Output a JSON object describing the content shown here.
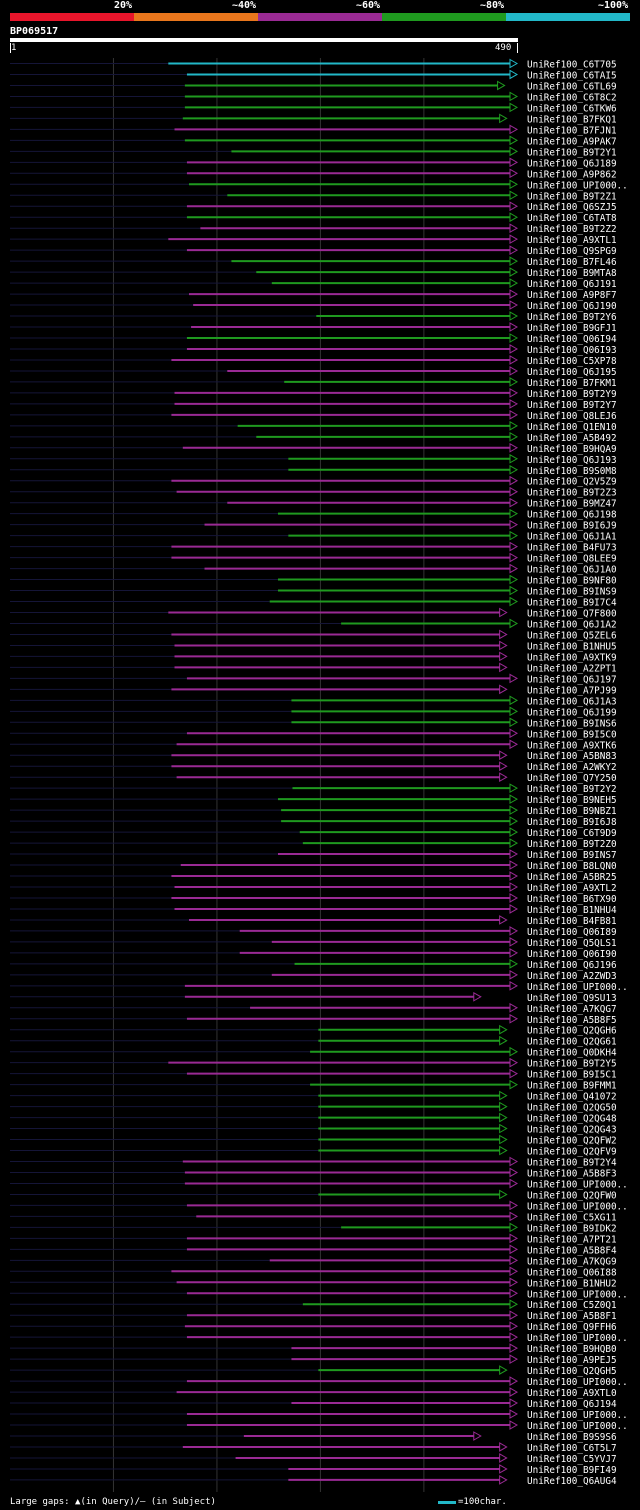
{
  "legend": {
    "segments": [
      {
        "label": "20%",
        "color": "#e8152b"
      },
      {
        "label": "~40%",
        "color": "#e8761c"
      },
      {
        "label": "~60%",
        "color": "#9a2a94"
      },
      {
        "label": "~80%",
        "color": "#1f9a1f"
      },
      {
        "label": "~100%",
        "color": "#22b8c8"
      }
    ]
  },
  "query": {
    "id": "BP069517",
    "start": "1",
    "end": "490"
  },
  "footer": {
    "left": "Large gaps: ▲(in Query)/– (in Subject)",
    "right": "=100char."
  },
  "chart_data": {
    "type": "alignment",
    "query_length": 490,
    "hits": [
      {
        "name": "UniRef100_C6T705",
        "start": 153,
        "end": 490,
        "id": "~100%"
      },
      {
        "name": "UniRef100_C6TAI5",
        "start": 171,
        "end": 490,
        "id": "~100%"
      },
      {
        "name": "UniRef100_C6TL69",
        "start": 169,
        "end": 478,
        "id": "~80%"
      },
      {
        "name": "UniRef100_C6T8C2",
        "start": 169,
        "end": 490,
        "id": "~80%"
      },
      {
        "name": "UniRef100_C6TKW6",
        "start": 169,
        "end": 490,
        "id": "~80%"
      },
      {
        "name": "UniRef100_B7FKQ1",
        "start": 167,
        "end": 480,
        "id": "~80%"
      },
      {
        "name": "UniRef100_B7FJN1",
        "start": 159,
        "end": 490,
        "id": "~60%"
      },
      {
        "name": "UniRef100_A9PAK7",
        "start": 169,
        "end": 490,
        "id": "~80%"
      },
      {
        "name": "UniRef100_B9T2Y1",
        "start": 214,
        "end": 490,
        "id": "~80%"
      },
      {
        "name": "UniRef100_Q6J189",
        "start": 171,
        "end": 490,
        "id": "~60%"
      },
      {
        "name": "UniRef100_A9P862",
        "start": 171,
        "end": 490,
        "id": "~60%"
      },
      {
        "name": "UniRef100_UPI000..",
        "start": 173,
        "end": 490,
        "id": "~80%"
      },
      {
        "name": "UniRef100_B9T2Z1",
        "start": 210,
        "end": 490,
        "id": "~80%"
      },
      {
        "name": "UniRef100_Q6SZJ5",
        "start": 171,
        "end": 490,
        "id": "~60%"
      },
      {
        "name": "UniRef100_C6TAT8",
        "start": 171,
        "end": 490,
        "id": "~80%"
      },
      {
        "name": "UniRef100_B9T2Z2",
        "start": 184,
        "end": 490,
        "id": "~60%"
      },
      {
        "name": "UniRef100_A9XTL1",
        "start": 153,
        "end": 490,
        "id": "~60%"
      },
      {
        "name": "UniRef100_Q9SPG9",
        "start": 171,
        "end": 490,
        "id": "~60%"
      },
      {
        "name": "UniRef100_B7FL46",
        "start": 214,
        "end": 490,
        "id": "~80%"
      },
      {
        "name": "UniRef100_B9MTA8",
        "start": 238,
        "end": 490,
        "id": "~80%"
      },
      {
        "name": "UniRef100_Q6J191",
        "start": 253,
        "end": 490,
        "id": "~80%"
      },
      {
        "name": "UniRef100_A9P8F7",
        "start": 173,
        "end": 490,
        "id": "~60%"
      },
      {
        "name": "UniRef100_Q6J190",
        "start": 177,
        "end": 490,
        "id": "~60%"
      },
      {
        "name": "UniRef100_B9T2Y6",
        "start": 296,
        "end": 490,
        "id": "~80%"
      },
      {
        "name": "UniRef100_B9GFJ1",
        "start": 175,
        "end": 490,
        "id": "~60%"
      },
      {
        "name": "UniRef100_Q06I94",
        "start": 171,
        "end": 490,
        "id": "~80%"
      },
      {
        "name": "UniRef100_Q06I93",
        "start": 171,
        "end": 490,
        "id": "~60%"
      },
      {
        "name": "UniRef100_C5XP78",
        "start": 156,
        "end": 490,
        "id": "~60%"
      },
      {
        "name": "UniRef100_Q6J195",
        "start": 210,
        "end": 490,
        "id": "~60%"
      },
      {
        "name": "UniRef100_B7FKM1",
        "start": 265,
        "end": 490,
        "id": "~80%"
      },
      {
        "name": "UniRef100_B9T2Y9",
        "start": 159,
        "end": 490,
        "id": "~60%"
      },
      {
        "name": "UniRef100_B9T2Y7",
        "start": 159,
        "end": 490,
        "id": "~60%"
      },
      {
        "name": "UniRef100_Q8LEJ6",
        "start": 156,
        "end": 490,
        "id": "~60%"
      },
      {
        "name": "UniRef100_Q1EN10",
        "start": 220,
        "end": 490,
        "id": "~80%"
      },
      {
        "name": "UniRef100_A5B492",
        "start": 238,
        "end": 490,
        "id": "~80%"
      },
      {
        "name": "UniRef100_B9HQA9",
        "start": 167,
        "end": 490,
        "id": "~60%"
      },
      {
        "name": "UniRef100_Q6J193",
        "start": 269,
        "end": 490,
        "id": "~80%"
      },
      {
        "name": "UniRef100_B9S0M8",
        "start": 269,
        "end": 490,
        "id": "~80%"
      },
      {
        "name": "UniRef100_Q2V5Z9",
        "start": 156,
        "end": 490,
        "id": "~60%"
      },
      {
        "name": "UniRef100_B9T2Z3",
        "start": 161,
        "end": 490,
        "id": "~60%"
      },
      {
        "name": "UniRef100_B9MZ47",
        "start": 210,
        "end": 490,
        "id": "~60%"
      },
      {
        "name": "UniRef100_Q6J198",
        "start": 259,
        "end": 490,
        "id": "~80%"
      },
      {
        "name": "UniRef100_B9I6J9",
        "start": 188,
        "end": 490,
        "id": "~60%"
      },
      {
        "name": "UniRef100_Q6J1A1",
        "start": 269,
        "end": 490,
        "id": "~80%"
      },
      {
        "name": "UniRef100_B4FU73",
        "start": 156,
        "end": 490,
        "id": "~60%"
      },
      {
        "name": "UniRef100_Q8LEE9",
        "start": 156,
        "end": 490,
        "id": "~60%"
      },
      {
        "name": "UniRef100_Q6J1A0",
        "start": 188,
        "end": 490,
        "id": "~60%"
      },
      {
        "name": "UniRef100_B9NF80",
        "start": 259,
        "end": 490,
        "id": "~80%"
      },
      {
        "name": "UniRef100_B9INS9",
        "start": 259,
        "end": 490,
        "id": "~80%"
      },
      {
        "name": "UniRef100_B9I7C4",
        "start": 251,
        "end": 490,
        "id": "~80%"
      },
      {
        "name": "UniRef100_Q7F800",
        "start": 153,
        "end": 480,
        "id": "~60%"
      },
      {
        "name": "UniRef100_Q6J1A2",
        "start": 320,
        "end": 490,
        "id": "~80%"
      },
      {
        "name": "UniRef100_Q5ZEL6",
        "start": 156,
        "end": 480,
        "id": "~60%"
      },
      {
        "name": "UniRef100_B1NHU5",
        "start": 159,
        "end": 480,
        "id": "~60%"
      },
      {
        "name": "UniRef100_A9XTK9",
        "start": 159,
        "end": 480,
        "id": "~60%"
      },
      {
        "name": "UniRef100_A2ZPT1",
        "start": 159,
        "end": 480,
        "id": "~60%"
      },
      {
        "name": "UniRef100_Q6J197",
        "start": 171,
        "end": 490,
        "id": "~60%"
      },
      {
        "name": "UniRef100_A7PJ99",
        "start": 156,
        "end": 480,
        "id": "~60%"
      },
      {
        "name": "UniRef100_Q6J1A3",
        "start": 272,
        "end": 490,
        "id": "~80%"
      },
      {
        "name": "UniRef100_Q6J199",
        "start": 272,
        "end": 490,
        "id": "~80%"
      },
      {
        "name": "UniRef100_B9INS6",
        "start": 272,
        "end": 490,
        "id": "~80%"
      },
      {
        "name": "UniRef100_B9I5C0",
        "start": 171,
        "end": 490,
        "id": "~60%"
      },
      {
        "name": "UniRef100_A9XTK6",
        "start": 161,
        "end": 490,
        "id": "~60%"
      },
      {
        "name": "UniRef100_A5BN83",
        "start": 156,
        "end": 480,
        "id": "~60%"
      },
      {
        "name": "UniRef100_A2WKY2",
        "start": 156,
        "end": 480,
        "id": "~60%"
      },
      {
        "name": "UniRef100_Q7Y250",
        "start": 161,
        "end": 480,
        "id": "~60%"
      },
      {
        "name": "UniRef100_B9T2Y2",
        "start": 273,
        "end": 490,
        "id": "~80%"
      },
      {
        "name": "UniRef100_B9NEH5",
        "start": 259,
        "end": 490,
        "id": "~80%"
      },
      {
        "name": "UniRef100_B9NBZ1",
        "start": 262,
        "end": 490,
        "id": "~80%"
      },
      {
        "name": "UniRef100_B9I6J8",
        "start": 262,
        "end": 490,
        "id": "~80%"
      },
      {
        "name": "UniRef100_C6T9D9",
        "start": 280,
        "end": 490,
        "id": "~80%"
      },
      {
        "name": "UniRef100_B9T2Z0",
        "start": 283,
        "end": 490,
        "id": "~80%"
      },
      {
        "name": "UniRef100_B9INS7",
        "start": 259,
        "end": 490,
        "id": "~60%"
      },
      {
        "name": "UniRef100_B8LQN0",
        "start": 165,
        "end": 490,
        "id": "~60%"
      },
      {
        "name": "UniRef100_A5BR25",
        "start": 156,
        "end": 490,
        "id": "~60%"
      },
      {
        "name": "UniRef100_A9XTL2",
        "start": 159,
        "end": 490,
        "id": "~60%"
      },
      {
        "name": "UniRef100_B6TX90",
        "start": 156,
        "end": 490,
        "id": "~60%"
      },
      {
        "name": "UniRef100_B1NHU4",
        "start": 159,
        "end": 490,
        "id": "~60%"
      },
      {
        "name": "UniRef100_B4FB81",
        "start": 173,
        "end": 480,
        "id": "~60%"
      },
      {
        "name": "UniRef100_Q06I89",
        "start": 222,
        "end": 490,
        "id": "~60%"
      },
      {
        "name": "UniRef100_Q5QLS1",
        "start": 253,
        "end": 490,
        "id": "~60%"
      },
      {
        "name": "UniRef100_Q06I90",
        "start": 222,
        "end": 490,
        "id": "~60%"
      },
      {
        "name": "UniRef100_Q6J196",
        "start": 275,
        "end": 490,
        "id": "~80%"
      },
      {
        "name": "UniRef100_A2ZWD3",
        "start": 253,
        "end": 490,
        "id": "~60%"
      },
      {
        "name": "UniRef100_UPI000..",
        "start": 169,
        "end": 490,
        "id": "~60%"
      },
      {
        "name": "UniRef100_Q9SU13",
        "start": 169,
        "end": 455,
        "id": "~60%"
      },
      {
        "name": "UniRef100_A7KQG7",
        "start": 232,
        "end": 490,
        "id": "~60%"
      },
      {
        "name": "UniRef100_A5B8F5",
        "start": 171,
        "end": 490,
        "id": "~60%"
      },
      {
        "name": "UniRef100_Q2QGH6",
        "start": 298,
        "end": 480,
        "id": "~80%"
      },
      {
        "name": "UniRef100_Q2QG61",
        "start": 298,
        "end": 480,
        "id": "~80%"
      },
      {
        "name": "UniRef100_Q0DKH4",
        "start": 290,
        "end": 490,
        "id": "~80%"
      },
      {
        "name": "UniRef100_B9T2Y5",
        "start": 153,
        "end": 490,
        "id": "~60%"
      },
      {
        "name": "UniRef100_B9I5C1",
        "start": 171,
        "end": 490,
        "id": "~60%"
      },
      {
        "name": "UniRef100_B9FMM1",
        "start": 290,
        "end": 490,
        "id": "~80%"
      },
      {
        "name": "UniRef100_Q41072",
        "start": 298,
        "end": 480,
        "id": "~80%"
      },
      {
        "name": "UniRef100_Q2QG50",
        "start": 298,
        "end": 480,
        "id": "~80%"
      },
      {
        "name": "UniRef100_Q2QG48",
        "start": 298,
        "end": 480,
        "id": "~80%"
      },
      {
        "name": "UniRef100_Q2QG43",
        "start": 298,
        "end": 480,
        "id": "~80%"
      },
      {
        "name": "UniRef100_Q2QFW2",
        "start": 298,
        "end": 480,
        "id": "~80%"
      },
      {
        "name": "UniRef100_Q2QFV9",
        "start": 298,
        "end": 480,
        "id": "~80%"
      },
      {
        "name": "UniRef100_B9T2Y4",
        "start": 167,
        "end": 490,
        "id": "~60%"
      },
      {
        "name": "UniRef100_A5B8F3",
        "start": 169,
        "end": 490,
        "id": "~60%"
      },
      {
        "name": "UniRef100_UPI000..",
        "start": 169,
        "end": 490,
        "id": "~60%"
      },
      {
        "name": "UniRef100_Q2QFW0",
        "start": 298,
        "end": 480,
        "id": "~80%"
      },
      {
        "name": "UniRef100_UPI000..",
        "start": 171,
        "end": 490,
        "id": "~60%"
      },
      {
        "name": "UniRef100_C5XG11",
        "start": 180,
        "end": 490,
        "id": "~60%"
      },
      {
        "name": "UniRef100_B9IDK2",
        "start": 320,
        "end": 490,
        "id": "~80%"
      },
      {
        "name": "UniRef100_A7PT21",
        "start": 171,
        "end": 490,
        "id": "~60%"
      },
      {
        "name": "UniRef100_A5B8F4",
        "start": 171,
        "end": 490,
        "id": "~60%"
      },
      {
        "name": "UniRef100_A7KQG9",
        "start": 251,
        "end": 490,
        "id": "~60%"
      },
      {
        "name": "UniRef100_Q06I88",
        "start": 156,
        "end": 490,
        "id": "~60%"
      },
      {
        "name": "UniRef100_B1NHU2",
        "start": 161,
        "end": 490,
        "id": "~60%"
      },
      {
        "name": "UniRef100_UPI000..",
        "start": 171,
        "end": 490,
        "id": "~60%"
      },
      {
        "name": "UniRef100_C5Z0Q1",
        "start": 283,
        "end": 490,
        "id": "~80%"
      },
      {
        "name": "UniRef100_A5B8F1",
        "start": 171,
        "end": 490,
        "id": "~60%"
      },
      {
        "name": "UniRef100_Q9FFH6",
        "start": 169,
        "end": 490,
        "id": "~60%"
      },
      {
        "name": "UniRef100_UPI000..",
        "start": 171,
        "end": 490,
        "id": "~60%"
      },
      {
        "name": "UniRef100_B9HQB0",
        "start": 272,
        "end": 490,
        "id": "~60%"
      },
      {
        "name": "UniRef100_A9PEJ5",
        "start": 272,
        "end": 490,
        "id": "~60%"
      },
      {
        "name": "UniRef100_Q2QGH5",
        "start": 298,
        "end": 480,
        "id": "~80%"
      },
      {
        "name": "UniRef100_UPI000..",
        "start": 171,
        "end": 490,
        "id": "~60%"
      },
      {
        "name": "UniRef100_A9XTL0",
        "start": 161,
        "end": 490,
        "id": "~60%"
      },
      {
        "name": "UniRef100_Q6J194",
        "start": 272,
        "end": 490,
        "id": "~60%"
      },
      {
        "name": "UniRef100_UPI000..",
        "start": 171,
        "end": 490,
        "id": "~60%"
      },
      {
        "name": "UniRef100_UPI000..",
        "start": 171,
        "end": 490,
        "id": "~60%"
      },
      {
        "name": "UniRef100_B9S9S6",
        "start": 226,
        "end": 455,
        "id": "~60%"
      },
      {
        "name": "UniRef100_C6T5L7",
        "start": 167,
        "end": 480,
        "id": "~60%"
      },
      {
        "name": "UniRef100_C5YVJ7",
        "start": 218,
        "end": 480,
        "id": "~60%"
      },
      {
        "name": "UniRef100_B9FI49",
        "start": 269,
        "end": 480,
        "id": "~60%"
      },
      {
        "name": "UniRef100_Q6AUG4",
        "start": 269,
        "end": 480,
        "id": "~60%"
      }
    ]
  }
}
